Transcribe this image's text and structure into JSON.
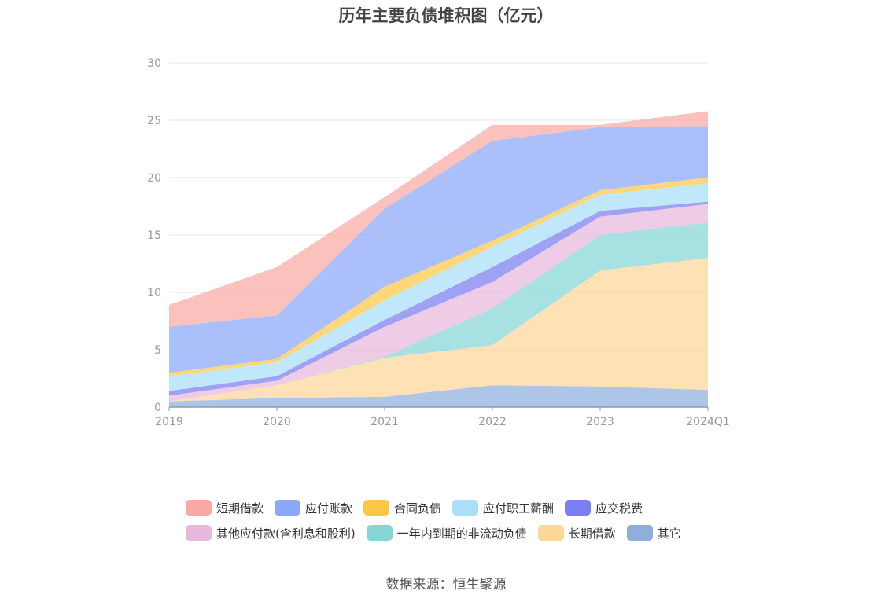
{
  "title": "历年主要负债堆积图（亿元）",
  "source": "数据来源：恒生聚源",
  "chart_data": {
    "type": "area",
    "stacked": true,
    "title": "历年主要负债堆积图（亿元）",
    "xlabel": "",
    "ylabel": "",
    "categories": [
      "2019",
      "2020",
      "2021",
      "2022",
      "2023",
      "2024Q1"
    ],
    "ylim": [
      0,
      30
    ],
    "yticks": [
      0,
      5,
      10,
      15,
      20,
      25,
      30
    ],
    "grid": true,
    "legend_position": "bottom",
    "series": [
      {
        "name": "其它",
        "color": "#8eaedc",
        "values": [
          0.5,
          0.8,
          0.9,
          1.9,
          1.8,
          1.5
        ]
      },
      {
        "name": "长期借款",
        "color": "#fdd699",
        "values": [
          0.0,
          1.1,
          3.4,
          3.5,
          10.1,
          11.5
        ]
      },
      {
        "name": "一年内到期的非流动负债",
        "color": "#86d6d6",
        "values": [
          0.0,
          0.0,
          0.1,
          3.2,
          3.1,
          3.1
        ]
      },
      {
        "name": "其他应付款(含利息和股利)",
        "color": "#e8b8dc",
        "values": [
          0.5,
          0.4,
          2.6,
          2.3,
          1.6,
          1.6
        ]
      },
      {
        "name": "应交税费",
        "color": "#7a7ef0",
        "values": [
          0.4,
          0.4,
          0.6,
          1.3,
          0.5,
          0.2
        ]
      },
      {
        "name": "应付职工薪酬",
        "color": "#a9dff8",
        "values": [
          1.3,
          1.2,
          1.7,
          1.8,
          1.4,
          1.6
        ]
      },
      {
        "name": "合同负债",
        "color": "#fcc745",
        "values": [
          0.3,
          0.3,
          1.2,
          0.5,
          0.4,
          0.5
        ]
      },
      {
        "name": "应付账款",
        "color": "#8ba8f8",
        "values": [
          4.0,
          3.8,
          6.8,
          8.7,
          5.5,
          4.5
        ]
      },
      {
        "name": "短期借款",
        "color": "#f9a9a4",
        "values": [
          1.9,
          4.2,
          1.0,
          1.4,
          0.2,
          1.3
        ]
      }
    ]
  },
  "legend": {
    "rows": [
      [
        {
          "label": "短期借款",
          "color": "#f9a9a4"
        },
        {
          "label": "应付账款",
          "color": "#8ba8f8"
        },
        {
          "label": "合同负债",
          "color": "#fcc745"
        },
        {
          "label": "应付职工薪酬",
          "color": "#a9dff8"
        },
        {
          "label": "应交税费",
          "color": "#7a7ef0"
        }
      ],
      [
        {
          "label": "其他应付款(含利息和股利)",
          "color": "#e8b8dc"
        },
        {
          "label": "一年内到期的非流动负债",
          "color": "#86d6d6"
        },
        {
          "label": "长期借款",
          "color": "#fdd699"
        },
        {
          "label": "其它",
          "color": "#8eaedc"
        }
      ]
    ]
  }
}
